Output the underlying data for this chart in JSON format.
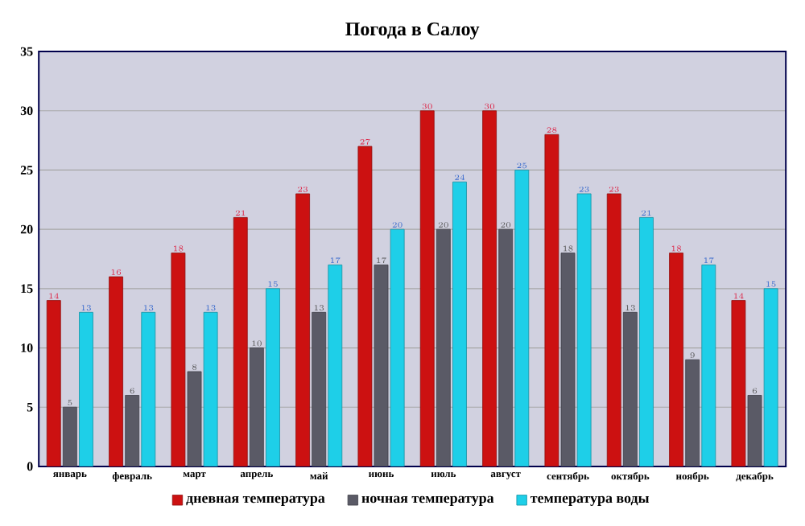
{
  "chart_data": {
    "type": "bar",
    "title": "Погода в Салоу",
    "categories": [
      "январь",
      "февраль",
      "март",
      "апрель",
      "май",
      "июнь",
      "июль",
      "август",
      "сентябрь",
      "октябрь",
      "ноябрь",
      "декабрь"
    ],
    "series": [
      {
        "name": "дневная температура",
        "color": "#cc1111",
        "values": [
          14,
          16,
          18,
          21,
          23,
          27,
          30,
          30,
          28,
          23,
          18,
          14
        ]
      },
      {
        "name": "ночная температура",
        "color": "#5a5a66",
        "values": [
          5,
          6,
          8,
          10,
          13,
          17,
          20,
          20,
          18,
          13,
          9,
          6
        ]
      },
      {
        "name": "температура воды",
        "color": "#1ecfe8",
        "values": [
          13,
          13,
          13,
          15,
          17,
          20,
          24,
          25,
          23,
          21,
          17,
          15
        ]
      }
    ],
    "ylim": [
      0,
      35
    ],
    "yticks": [
      0,
      5,
      10,
      15,
      20,
      25,
      30,
      35
    ],
    "grid": "y",
    "legend": "bottom",
    "data_labels": true
  }
}
